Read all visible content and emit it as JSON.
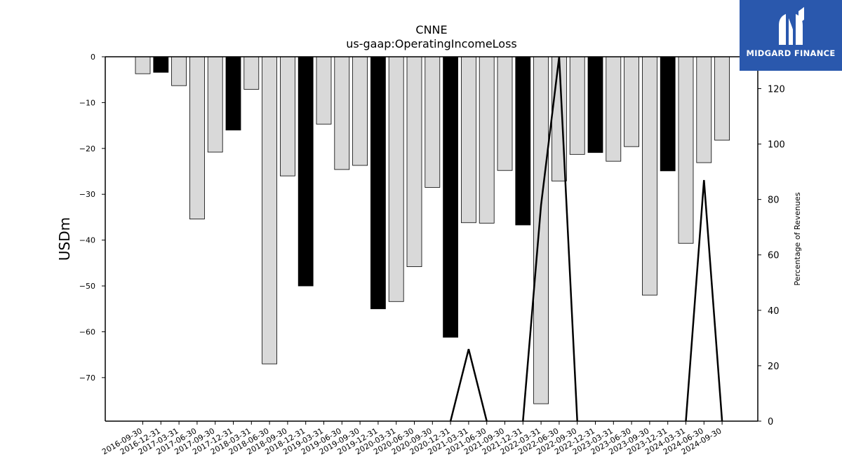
{
  "chart_data": {
    "type": "bar",
    "title": "CNNE",
    "subtitle": "us-gaap:OperatingIncomeLoss",
    "ylabel": "USDm",
    "ylabel_right": "Percentage of Revenues",
    "ylim": [
      -79.5,
      0
    ],
    "ylim_right": [
      0,
      131.5
    ],
    "yticks": [
      0,
      -10,
      -20,
      -30,
      -40,
      -50,
      -60,
      -70
    ],
    "yticks_right": [
      0,
      20,
      40,
      60,
      80,
      100,
      120
    ],
    "categories": [
      "2016-09-30",
      "2016-12-31",
      "2017-03-31",
      "2017-06-30",
      "2017-09-30",
      "2017-12-31",
      "2018-03-31",
      "2018-06-30",
      "2018-09-30",
      "2018-12-31",
      "2019-03-31",
      "2019-06-30",
      "2019-09-30",
      "2019-12-31",
      "2020-03-31",
      "2020-06-30",
      "2020-09-30",
      "2020-12-31",
      "2021-03-31",
      "2021-06-30",
      "2021-09-30",
      "2021-12-31",
      "2022-03-31",
      "2022-06-30",
      "2022-09-30",
      "2022-12-31",
      "2023-03-31",
      "2023-06-30",
      "2023-09-30",
      "2023-12-31",
      "2024-03-31",
      "2024-06-30",
      "2024-09-30"
    ],
    "series": [
      {
        "kind": "bar",
        "values": [
          -3.7,
          -3.4,
          -6.3,
          -35.4,
          -20.8,
          -16.0,
          -7.1,
          -67.0,
          -26.0,
          -50.0,
          -14.7,
          -24.6,
          -23.7,
          -55.0,
          -53.4,
          -45.8,
          -28.5,
          -61.2,
          -36.2,
          -36.3,
          -24.8,
          -36.7,
          -75.7,
          -27.1,
          -21.3,
          -20.9,
          -22.8,
          -19.6,
          -52.0,
          -24.9,
          -40.7,
          -23.1,
          -18.2
        ],
        "highlight": [
          false,
          true,
          false,
          false,
          false,
          true,
          false,
          false,
          false,
          true,
          false,
          false,
          false,
          true,
          false,
          false,
          false,
          true,
          false,
          false,
          false,
          true,
          false,
          false,
          false,
          true,
          false,
          false,
          false,
          true,
          false,
          false,
          false
        ],
        "color": "#d9d9d9",
        "highlight_color": "#000000"
      },
      {
        "kind": "line",
        "axis": "right",
        "color": "#000000",
        "values": [
          null,
          null,
          null,
          null,
          null,
          null,
          null,
          null,
          null,
          null,
          null,
          null,
          null,
          null,
          null,
          null,
          null,
          0,
          26,
          0,
          null,
          0,
          78,
          131.5,
          0,
          null,
          null,
          null,
          null,
          null,
          0,
          87,
          0
        ]
      }
    ]
  },
  "logo": {
    "text": "MIDGARD FINANCE"
  }
}
